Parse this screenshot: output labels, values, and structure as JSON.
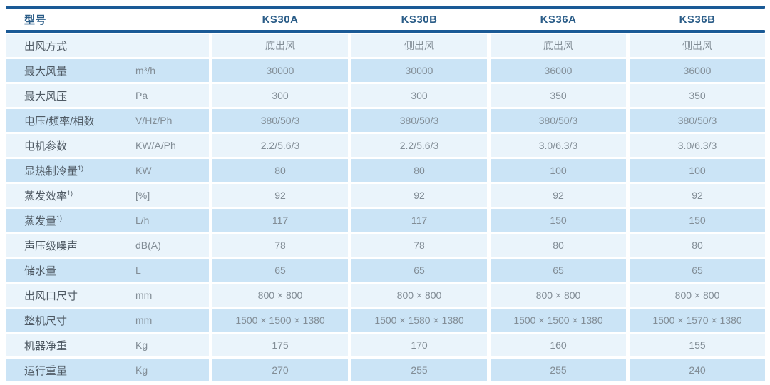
{
  "table": {
    "header": {
      "label": "型号",
      "models": [
        "KS30A",
        "KS30B",
        "KS36A",
        "KS36B"
      ]
    },
    "rows": [
      {
        "label": "出风方式",
        "sup": "",
        "unit": "",
        "values": [
          "底出风",
          "侧出风",
          "底出风",
          "侧出风"
        ]
      },
      {
        "label": "最大风量",
        "sup": "",
        "unit": "m³/h",
        "values": [
          "30000",
          "30000",
          "36000",
          "36000"
        ]
      },
      {
        "label": "最大风压",
        "sup": "",
        "unit": "Pa",
        "values": [
          "300",
          "300",
          "350",
          "350"
        ]
      },
      {
        "label": "电压/频率/相数",
        "sup": "",
        "unit": "V/Hz/Ph",
        "values": [
          "380/50/3",
          "380/50/3",
          "380/50/3",
          "380/50/3"
        ]
      },
      {
        "label": "电机参数",
        "sup": "",
        "unit": "KW/A/Ph",
        "values": [
          "2.2/5.6/3",
          "2.2/5.6/3",
          "3.0/6.3/3",
          "3.0/6.3/3"
        ]
      },
      {
        "label": "显热制冷量",
        "sup": "1)",
        "unit": "KW",
        "values": [
          "80",
          "80",
          "100",
          "100"
        ]
      },
      {
        "label": "蒸发效率",
        "sup": "1)",
        "unit": "[%]",
        "values": [
          "92",
          "92",
          "92",
          "92"
        ]
      },
      {
        "label": "蒸发量",
        "sup": "1)",
        "unit": "L/h",
        "values": [
          "117",
          "117",
          "150",
          "150"
        ]
      },
      {
        "label": "声压级噪声",
        "sup": "",
        "unit": "dB(A)",
        "values": [
          "78",
          "78",
          "80",
          "80"
        ]
      },
      {
        "label": "储水量",
        "sup": "",
        "unit": "L",
        "values": [
          "65",
          "65",
          "65",
          "65"
        ]
      },
      {
        "label": "出风口尺寸",
        "sup": "",
        "unit": "mm",
        "values": [
          "800 × 800",
          "800 × 800",
          "800 × 800",
          "800 × 800"
        ]
      },
      {
        "label": "整机尺寸",
        "sup": "",
        "unit": "mm",
        "values": [
          "1500 × 1500 × 1380",
          "1500 × 1580 × 1380",
          "1500 × 1500 × 1380",
          "1500 × 1570 × 1380"
        ]
      },
      {
        "label": "机器净重",
        "sup": "",
        "unit": "Kg",
        "values": [
          "175",
          "170",
          "160",
          "155"
        ]
      },
      {
        "label": "运行重量",
        "sup": "",
        "unit": "Kg",
        "values": [
          "270",
          "255",
          "255",
          "240"
        ]
      }
    ],
    "colors": {
      "rule": "#1a5a96",
      "row_light": "#eaf4fb",
      "row_dark": "#cbe4f6",
      "header_text": "#2b5d88",
      "label_text": "#4f5a64",
      "value_text": "#828d96"
    }
  }
}
